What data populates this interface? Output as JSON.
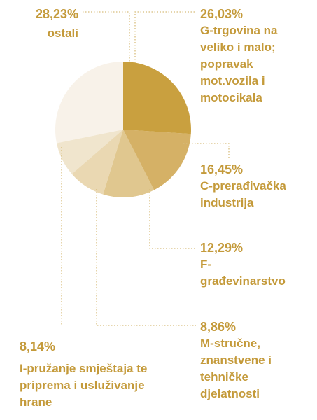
{
  "chart_data": {
    "type": "pie",
    "categories": [
      "G-trgovina na veliko i malo; popravak mot.vozila i motocikala",
      "C-prerađivačka industrija",
      "F-građevinarstvo",
      "M-stručne, znanstvene i tehničke djelatnosti",
      "I-pružanje smještaja te priprema i usluživanje hrane",
      "ostali"
    ],
    "values": [
      26.03,
      16.45,
      12.29,
      8.86,
      8.14,
      28.23
    ],
    "value_labels": [
      "26,03%",
      "16,45%",
      "12,29%",
      "8,86%",
      "8,14%",
      "28,23%"
    ],
    "colors": [
      "#c9a03f",
      "#d5b166",
      "#e0c78f",
      "#ead8b2",
      "#f0e5cd",
      "#f8f2e9"
    ]
  }
}
